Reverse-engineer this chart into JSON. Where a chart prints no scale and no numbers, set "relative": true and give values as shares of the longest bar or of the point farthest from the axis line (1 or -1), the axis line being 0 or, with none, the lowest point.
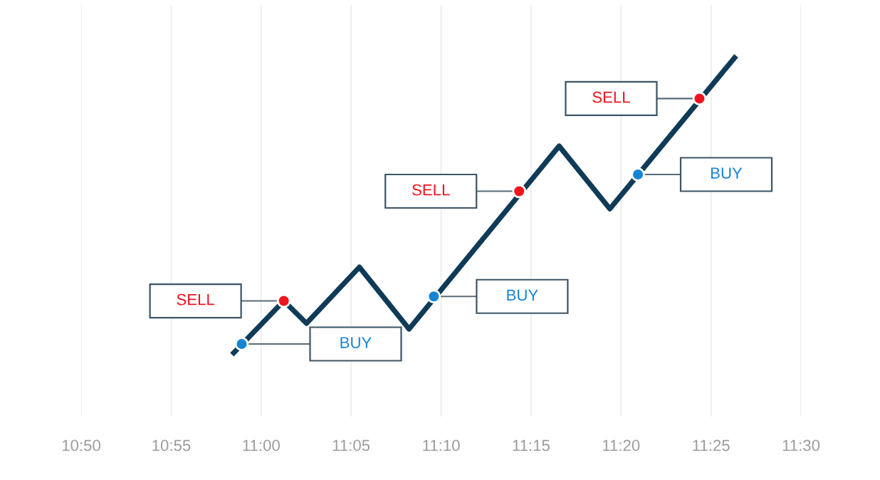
{
  "chart_data": {
    "type": "line",
    "relative": true,
    "line_style": "solid",
    "grid": "x",
    "xlim": [
      10.8333,
      11.5
    ],
    "xticks": [
      {
        "value": 10.8333,
        "label": "10:50"
      },
      {
        "value": 10.9167,
        "label": "10:55"
      },
      {
        "value": 11,
        "label": "11:00"
      },
      {
        "value": 11.0833,
        "label": "11:05"
      },
      {
        "value": 11.1667,
        "label": "11:10"
      },
      {
        "value": 11.25,
        "label": "11:15"
      },
      {
        "value": 11.3333,
        "label": "11:20"
      },
      {
        "value": 11.4167,
        "label": "11:25"
      },
      {
        "value": 11.5,
        "label": "11:30"
      }
    ],
    "series": [
      {
        "type": "line",
        "color": "#0f3b57",
        "x": [
          10.973,
          11.021,
          11.042,
          11.091,
          11.137,
          11.276,
          11.323,
          11.44
        ],
        "values": [
          0,
          0.18,
          0.105,
          0.293,
          0.086,
          0.698,
          0.488,
          1
        ]
      },
      {
        "type": "scatter",
        "name": "SELL",
        "color": "#f0141e",
        "marker": "circle",
        "x": [
          11.021,
          11.239,
          11.406
        ],
        "values": [
          0.18,
          0.547,
          0.857
        ]
      },
      {
        "type": "scatter",
        "name": "BUY",
        "color": "#1684d4",
        "marker": "circle",
        "x": [
          10.982,
          11.16,
          11.349
        ],
        "values": [
          0.036,
          0.195,
          0.603
        ]
      }
    ]
  }
}
